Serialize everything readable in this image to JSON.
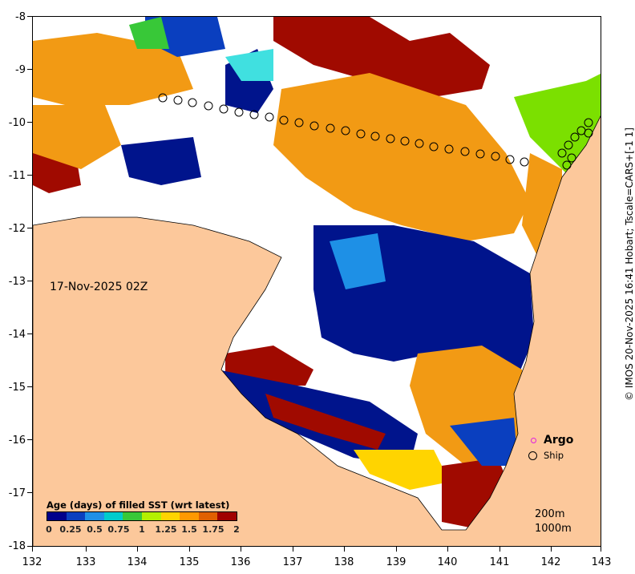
{
  "map": {
    "date_label": "17-Nov-2025 02Z",
    "credit": "© IMOS 20-Nov-2025 16:41 Hobart; Tscale=CARS+[-1 1]",
    "lon_ticks": [
      "132",
      "133",
      "134",
      "135",
      "136",
      "137",
      "138",
      "139",
      "140",
      "141",
      "142",
      "143"
    ],
    "lat_ticks": [
      "-8",
      "-9",
      "-10",
      "-11",
      "-12",
      "-13",
      "-14",
      "-15",
      "-16",
      "-17",
      "-18"
    ],
    "legend": {
      "title": "Age (days) of filled SST (wrt latest)",
      "labels": [
        "0",
        "0.25",
        "0.5",
        "0.75",
        "1",
        "1.25",
        "1.5",
        "1.75",
        "2"
      ],
      "colors": [
        "#00008b",
        "#0a3fbf",
        "#1e90e6",
        "#00cccc",
        "#38c838",
        "#b4f000",
        "#ffd400",
        "#ff9900",
        "#e06000",
        "#a00000"
      ]
    },
    "markers": {
      "argo_label": "Argo",
      "ship_label": "Ship"
    },
    "depth_labels": {
      "shallow": "200m",
      "deep": "1000m"
    },
    "colors": {
      "land": "#fcc89b",
      "no_data": "#ffffff",
      "dark_blue": "#00148c",
      "orange": "#f29a14",
      "dark_red": "#a00a00",
      "green": "#7be000",
      "cyan": "#40e0e0"
    }
  }
}
